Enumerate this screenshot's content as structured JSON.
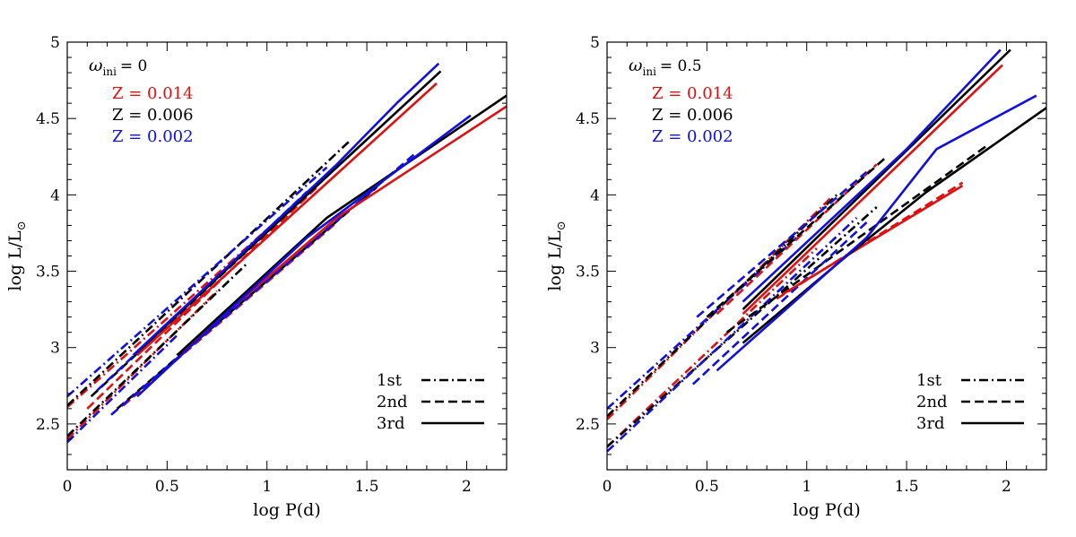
{
  "chart_data": [
    {
      "type": "line",
      "panel": "left",
      "omega_symbol": "ω",
      "omega_sub": "ini",
      "omega_value": "= 0",
      "xlabel": "log P(d)",
      "ylabel": "log L/L",
      "ylabel_sun": "⊙",
      "xlim": [
        0,
        2.2
      ],
      "ylim": [
        2.2,
        5.0
      ],
      "x_ticks": [
        0,
        0.5,
        1,
        1.5,
        2
      ],
      "x_tick_labels": [
        "0",
        "0.5",
        "1",
        "1.5",
        "2"
      ],
      "y_ticks": [
        2.5,
        3,
        3.5,
        4,
        4.5,
        5
      ],
      "y_tick_labels": [
        "2.5",
        "3",
        "3.5",
        "4",
        "4.5",
        "5"
      ],
      "z_labels": [
        {
          "text": "Z = 0.014",
          "color": "#e01010"
        },
        {
          "text": "Z = 0.006",
          "color": "#000000"
        },
        {
          "text": "Z = 0.002",
          "color": "#1010e0"
        }
      ],
      "legend": [
        {
          "label": "1st",
          "style": "dashdot"
        },
        {
          "label": "2nd",
          "style": "dashed"
        },
        {
          "label": "3rd",
          "style": "solid"
        }
      ],
      "series": [
        {
          "name": "Z=0.014 1st",
          "color": "#e01010",
          "style": "dashdot",
          "x": [
            0.0,
            1.35
          ],
          "y": [
            2.61,
            4.18
          ]
        },
        {
          "name": "Z=0.006 1st",
          "color": "#000000",
          "style": "dashdot",
          "x": [
            0.0,
            1.42
          ],
          "y": [
            2.62,
            4.36
          ]
        },
        {
          "name": "Z=0.002 1st",
          "color": "#1010e0",
          "style": "dashdot",
          "x": [
            0.0,
            1.3
          ],
          "y": [
            2.68,
            4.18
          ]
        },
        {
          "name": "Z=0.014 1st lower",
          "color": "#e01010",
          "style": "dashdot",
          "x": [
            0.0,
            0.75
          ],
          "y": [
            2.4,
            3.37
          ]
        },
        {
          "name": "Z=0.006 1st lower",
          "color": "#000000",
          "style": "dashdot",
          "x": [
            0.0,
            0.9
          ],
          "y": [
            2.42,
            3.55
          ]
        },
        {
          "name": "Z=0.002 1st lower",
          "color": "#1010e0",
          "style": "dashdot",
          "x": [
            0.0,
            0.55
          ],
          "y": [
            2.38,
            3.08
          ]
        },
        {
          "name": "Z=0.014 2nd",
          "color": "#e01010",
          "style": "dashed",
          "x": [
            0.1,
            1.25
          ],
          "y": [
            2.6,
            4.05
          ]
        },
        {
          "name": "Z=0.006 2nd",
          "color": "#000000",
          "style": "dashed",
          "x": [
            0.12,
            1.3
          ],
          "y": [
            2.68,
            4.12
          ]
        },
        {
          "name": "Z=0.002 2nd",
          "color": "#1010e0",
          "style": "dashed",
          "x": [
            0.15,
            1.2
          ],
          "y": [
            2.72,
            4.02
          ]
        },
        {
          "name": "Z=0.014 2nd lower",
          "color": "#e01010",
          "style": "dashed",
          "x": [
            0.28,
            1.35
          ],
          "y": [
            2.62,
            3.82
          ]
        },
        {
          "name": "Z=0.006 2nd lower",
          "color": "#000000",
          "style": "dashed",
          "x": [
            0.25,
            1.55
          ],
          "y": [
            2.6,
            4.05
          ]
        },
        {
          "name": "Z=0.002 2nd lower",
          "color": "#1010e0",
          "style": "dashed",
          "x": [
            0.22,
            1.75
          ],
          "y": [
            2.56,
            4.28
          ]
        },
        {
          "name": "Z=0.014 3rd",
          "color": "#e01010",
          "style": "solid",
          "x": [
            0.35,
            1.85
          ],
          "y": [
            2.95,
            4.73
          ]
        },
        {
          "name": "Z=0.006 3rd",
          "color": "#000000",
          "style": "solid",
          "x": [
            0.35,
            1.87
          ],
          "y": [
            2.97,
            4.81
          ]
        },
        {
          "name": "Z=0.002 3rd",
          "color": "#1010e0",
          "style": "solid",
          "x": [
            0.33,
            1.35,
            1.65,
            1.86
          ],
          "y": [
            2.95,
            4.2,
            4.6,
            4.86
          ]
        },
        {
          "name": "Z=0.014 3rd lower",
          "color": "#e01010",
          "style": "solid",
          "x": [
            0.55,
            1.35,
            2.2
          ],
          "y": [
            2.95,
            3.85,
            4.58
          ]
        },
        {
          "name": "Z=0.006 3rd lower",
          "color": "#000000",
          "style": "solid",
          "x": [
            0.55,
            1.3,
            2.2
          ],
          "y": [
            2.95,
            3.85,
            4.65
          ]
        },
        {
          "name": "Z=0.002 3rd lower",
          "color": "#1010e0",
          "style": "solid",
          "x": [
            0.35,
            1.2,
            2.02
          ],
          "y": [
            2.68,
            3.72,
            4.52
          ]
        }
      ]
    },
    {
      "type": "line",
      "panel": "right",
      "omega_symbol": "ω",
      "omega_sub": "ini",
      "omega_value": "= 0.5",
      "xlabel": "log P(d)",
      "ylabel": "log L/L",
      "ylabel_sun": "⊙",
      "xlim": [
        0,
        2.2
      ],
      "ylim": [
        2.2,
        5.0
      ],
      "x_ticks": [
        0,
        0.5,
        1,
        1.5,
        2
      ],
      "x_tick_labels": [
        "0",
        "0.5",
        "1",
        "1.5",
        "2"
      ],
      "y_ticks": [
        2.5,
        3,
        3.5,
        4,
        4.5,
        5
      ],
      "y_tick_labels": [
        "2.5",
        "3",
        "3.5",
        "4",
        "4.5",
        "5"
      ],
      "z_labels": [
        {
          "text": "Z = 0.014",
          "color": "#e01010"
        },
        {
          "text": "Z = 0.006",
          "color": "#000000"
        },
        {
          "text": "Z = 0.002",
          "color": "#1010e0"
        }
      ],
      "legend": [
        {
          "label": "1st",
          "style": "dashdot"
        },
        {
          "label": "2nd",
          "style": "dashed"
        },
        {
          "label": "3rd",
          "style": "solid"
        }
      ],
      "series": [
        {
          "name": "Z=0.014 1st",
          "color": "#e01010",
          "style": "dashdot",
          "x": [
            0.0,
            1.12
          ],
          "y": [
            2.53,
            3.98
          ]
        },
        {
          "name": "Z=0.006 1st",
          "color": "#000000",
          "style": "dashdot",
          "x": [
            0.0,
            1.15
          ],
          "y": [
            2.55,
            4.0
          ]
        },
        {
          "name": "Z=0.002 1st",
          "color": "#1010e0",
          "style": "dashdot",
          "x": [
            0.0,
            0.95
          ],
          "y": [
            2.6,
            3.72
          ]
        },
        {
          "name": "Z=0.014 1st lower",
          "color": "#e01010",
          "style": "dashdot",
          "x": [
            0.0,
            1.05
          ],
          "y": [
            2.35,
            3.65
          ]
        },
        {
          "name": "Z=0.006 1st lower",
          "color": "#000000",
          "style": "dashdot",
          "x": [
            0.0,
            1.35
          ],
          "y": [
            2.35,
            3.92
          ]
        },
        {
          "name": "Z=0.002 1st lower",
          "color": "#1010e0",
          "style": "dashdot",
          "x": [
            0.0,
            1.25
          ],
          "y": [
            2.32,
            3.85
          ]
        },
        {
          "name": "Z=0.014 2nd",
          "color": "#e01010",
          "style": "dashed",
          "x": [
            0.55,
            1.35
          ],
          "y": [
            3.22,
            4.2
          ]
        },
        {
          "name": "Z=0.006 2nd",
          "color": "#000000",
          "style": "dashed",
          "x": [
            0.5,
            1.4
          ],
          "y": [
            3.2,
            4.25
          ]
        },
        {
          "name": "Z=0.002 2nd",
          "color": "#1010e0",
          "style": "dashed",
          "x": [
            0.45,
            1.3
          ],
          "y": [
            3.2,
            4.15
          ]
        },
        {
          "name": "Z=0.014 2nd lower",
          "color": "#e01010",
          "style": "dashed",
          "x": [
            0.85,
            1.78
          ],
          "y": [
            3.32,
            4.08
          ]
        },
        {
          "name": "Z=0.006 2nd lower",
          "color": "#000000",
          "style": "dashed",
          "x": [
            0.6,
            1.9
          ],
          "y": [
            3.1,
            4.32
          ]
        },
        {
          "name": "Z=0.002 2nd lower",
          "color": "#1010e0",
          "style": "dashed",
          "x": [
            0.43,
            1.3
          ],
          "y": [
            2.76,
            3.82
          ]
        },
        {
          "name": "Z=0.014 3rd",
          "color": "#e01010",
          "style": "solid",
          "x": [
            0.68,
            1.98
          ],
          "y": [
            3.22,
            4.85
          ]
        },
        {
          "name": "Z=0.006 3rd",
          "color": "#000000",
          "style": "solid",
          "x": [
            0.68,
            2.02
          ],
          "y": [
            3.25,
            4.95
          ]
        },
        {
          "name": "Z=0.002 3rd",
          "color": "#1010e0",
          "style": "solid",
          "x": [
            0.68,
            1.5,
            1.97
          ],
          "y": [
            3.3,
            4.3,
            4.95
          ]
        },
        {
          "name": "Z=0.014 3rd lower",
          "color": "#e01010",
          "style": "solid",
          "x": [
            0.88,
            1.78
          ],
          "y": [
            3.35,
            4.06
          ]
        },
        {
          "name": "Z=0.006 3rd lower",
          "color": "#000000",
          "style": "solid",
          "x": [
            0.68,
            1.2,
            1.6,
            2.2
          ],
          "y": [
            3.03,
            3.6,
            4.02,
            4.57
          ]
        },
        {
          "name": "Z=0.002 3rd lower",
          "color": "#1010e0",
          "style": "solid",
          "x": [
            0.55,
            1.3,
            1.65,
            2.15
          ],
          "y": [
            2.85,
            3.72,
            4.3,
            4.65
          ]
        }
      ]
    }
  ]
}
